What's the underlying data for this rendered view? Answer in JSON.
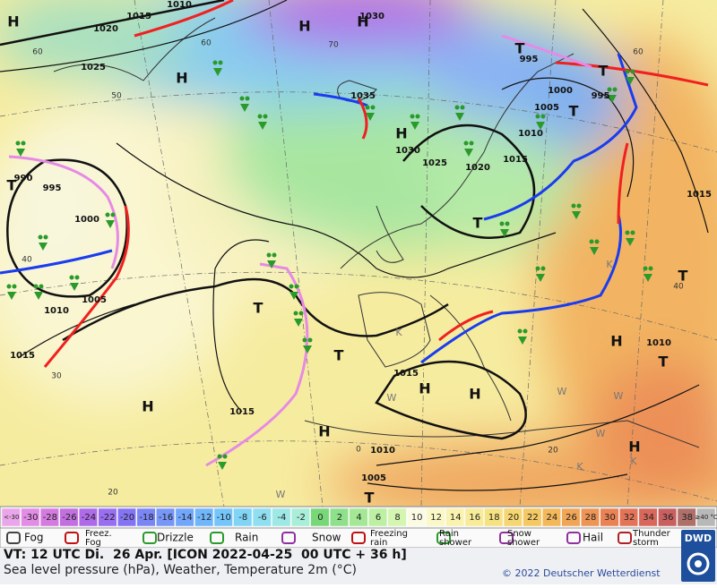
{
  "map": {
    "pressure_labels": [
      "1010",
      "1015",
      "1020",
      "1025",
      "1030",
      "1035",
      "1030",
      "1025",
      "1020",
      "1015",
      "1010",
      "1005",
      "1000",
      "995",
      "995",
      "1015",
      "1010",
      "1015",
      "1015",
      "1010",
      "1005",
      "1015",
      "1010",
      "1005",
      "1000",
      "995",
      "990"
    ],
    "temperature_labels": [
      "60",
      "50",
      "40",
      "30",
      "20",
      "70",
      "60",
      "60",
      "40",
      "20",
      "0"
    ],
    "pressure_centers": [
      "H",
      "H",
      "H",
      "H",
      "H",
      "H",
      "H",
      "H",
      "H",
      "H",
      "H",
      "T",
      "T",
      "T",
      "T",
      "T",
      "T",
      "T",
      "T",
      "T",
      "T"
    ],
    "other_symbols": [
      "K",
      "K",
      "K",
      "K",
      "W",
      "W",
      "W",
      "W",
      "W"
    ]
  },
  "temperature_scale": {
    "labels": [
      "<-30",
      -30,
      -28,
      -26,
      -24,
      -22,
      -20,
      -18,
      -16,
      -14,
      -12,
      -10,
      -8,
      -6,
      -4,
      -2,
      0,
      2,
      4,
      6,
      8,
      10,
      12,
      14,
      16,
      18,
      20,
      22,
      24,
      26,
      28,
      30,
      32,
      34,
      36,
      38,
      "≥40 °C"
    ],
    "colors": [
      "#eaa6ea",
      "#e28ce6",
      "#d47be0",
      "#c26fe0",
      "#ae6ae8",
      "#9a6ef0",
      "#8474f4",
      "#7b86f6",
      "#7696f8",
      "#72a6fa",
      "#70b6fa",
      "#74c6fa",
      "#80d4f6",
      "#8edff0",
      "#9ee8e6",
      "#a8eed8",
      "#78d878",
      "#8ee08a",
      "#a4e896",
      "#bcf0a2",
      "#d4f6b0",
      "#fbfbe4",
      "#fbf8c8",
      "#faf3b0",
      "#f8ec98",
      "#f7e282",
      "#f6d670",
      "#f4c862",
      "#f2b85a",
      "#f0a656",
      "#ee9454",
      "#ea8254",
      "#e47458",
      "#d8685c",
      "#c86060",
      "#b0706a",
      "#b8b8b8"
    ]
  },
  "legend": [
    [
      "Fog"
    ],
    [
      "Freez.",
      "Fog"
    ],
    [
      "Drizzle"
    ],
    [
      "Rain"
    ],
    [
      "Snow"
    ],
    [
      "Freezing",
      "rain"
    ],
    [
      "Rain",
      "shower"
    ],
    [
      "Snow",
      "shower"
    ],
    [
      "Hail"
    ],
    [
      "Thunder",
      "storm"
    ]
  ],
  "logo": "DWD",
  "info": {
    "valid_time": "VT: 12 UTC Di.  26 Apr. [ICON 2022-04-25  00 UTC + 36 h]",
    "description": "Sea level pressure (hPa), Weather, Temperature 2m (°C)",
    "copyright": "© 2022 Deutscher Wetterdienst"
  }
}
